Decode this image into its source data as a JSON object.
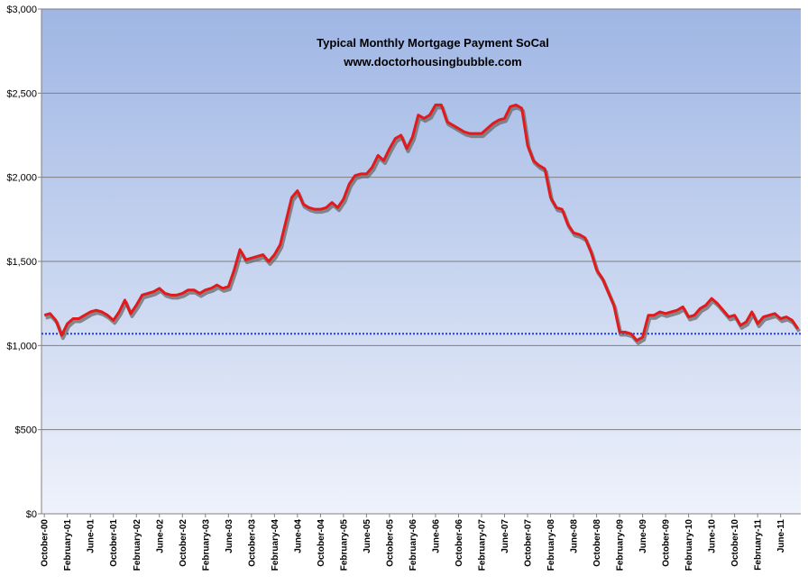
{
  "chart_data": {
    "type": "line",
    "title": "Typical Monthly Mortgage Payment  SoCal",
    "subtitle": "www.doctorhousingbubble.com",
    "xlabel": "",
    "ylabel": "",
    "ylim": [
      0,
      3000
    ],
    "yticks": [
      "$0",
      "$500",
      "$1,000",
      "$1,500",
      "$2,000",
      "$2,500",
      "$3,000"
    ],
    "ytick_values": [
      0,
      500,
      1000,
      1500,
      2000,
      2500,
      3000
    ],
    "grid": true,
    "legend": "none",
    "colors": {
      "line": "#e31a1c",
      "shadow": "#6a6a6a",
      "reference": "#1f3fd6",
      "grid": "#7f7f7f",
      "plot_top": "#9fb6e4",
      "plot_bottom": "#eef2fb"
    },
    "x_ticks": [
      "October-00",
      "February-01",
      "June-01",
      "October-01",
      "February-02",
      "June-02",
      "October-02",
      "February-03",
      "June-03",
      "October-03",
      "February-04",
      "June-04",
      "October-04",
      "February-05",
      "June-05",
      "October-05",
      "February-06",
      "June-06",
      "October-06",
      "February-07",
      "June-07",
      "October-07",
      "February-08",
      "June-08",
      "October-08",
      "February-09",
      "June-09",
      "October-09",
      "February-10",
      "June-10",
      "October-10",
      "February-11",
      "June-11"
    ],
    "x_start": "2000-10",
    "reference_line": 1070,
    "series": [
      {
        "name": "",
        "values": [
          1180,
          1190,
          1150,
          1060,
          1130,
          1160,
          1160,
          1180,
          1200,
          1210,
          1200,
          1180,
          1150,
          1200,
          1270,
          1190,
          1240,
          1300,
          1310,
          1320,
          1340,
          1310,
          1300,
          1300,
          1310,
          1330,
          1330,
          1310,
          1330,
          1340,
          1360,
          1340,
          1350,
          1450,
          1570,
          1510,
          1520,
          1530,
          1540,
          1500,
          1540,
          1600,
          1740,
          1880,
          1920,
          1840,
          1820,
          1810,
          1810,
          1820,
          1850,
          1820,
          1870,
          1960,
          2010,
          2020,
          2020,
          2060,
          2130,
          2100,
          2170,
          2230,
          2250,
          2170,
          2240,
          2370,
          2350,
          2370,
          2430,
          2430,
          2330,
          2310,
          2290,
          2270,
          2260,
          2260,
          2260,
          2290,
          2320,
          2340,
          2350,
          2420,
          2430,
          2410,
          2190,
          2100,
          2070,
          2050,
          1880,
          1820,
          1810,
          1720,
          1670,
          1660,
          1640,
          1560,
          1450,
          1400,
          1320,
          1240,
          1080,
          1080,
          1070,
          1030,
          1050,
          1180,
          1180,
          1200,
          1190,
          1200,
          1210,
          1230,
          1170,
          1180,
          1220,
          1240,
          1280,
          1250,
          1210,
          1170,
          1180,
          1120,
          1140,
          1200,
          1130,
          1170,
          1180,
          1190,
          1160,
          1170,
          1150,
          1100
        ]
      }
    ]
  }
}
